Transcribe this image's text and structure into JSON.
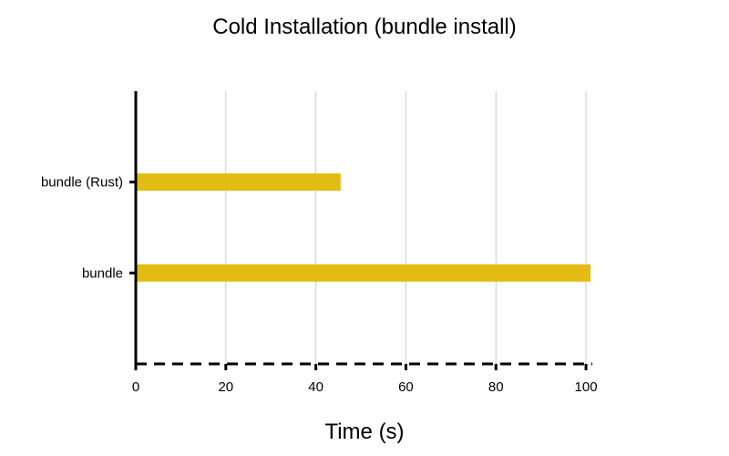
{
  "chart_data": {
    "type": "bar",
    "orientation": "horizontal",
    "title": "Cold Installation (bundle install)",
    "xlabel": "Time (s)",
    "ylabel": "",
    "categories": [
      "bundle (Rust)",
      "bundle"
    ],
    "values": [
      45.5,
      101
    ],
    "xlim": [
      0,
      101
    ],
    "xticks": [
      0,
      20,
      40,
      60,
      80,
      100
    ],
    "grid": "vertical",
    "bar_color": "#e3bc13"
  }
}
